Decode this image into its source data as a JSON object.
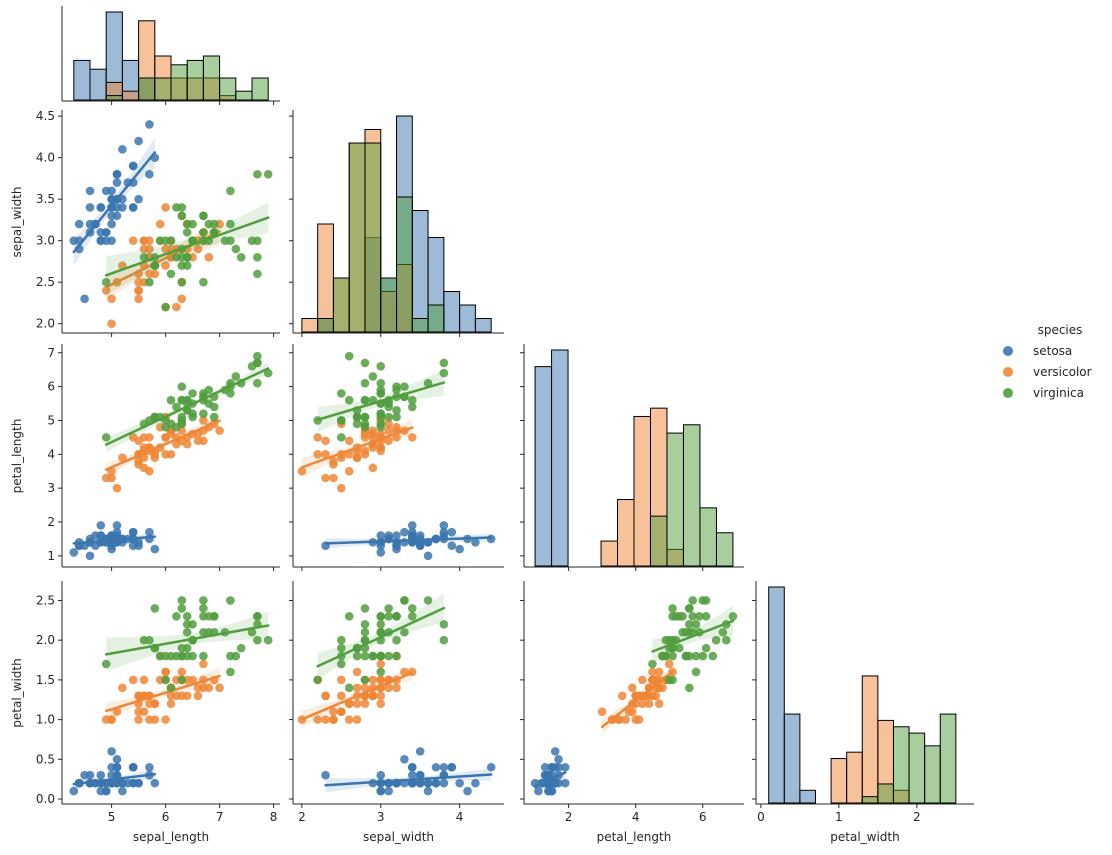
{
  "chart_data": {
    "type": "pairplot",
    "kind": "reg",
    "diag_kind": "hist",
    "corner": true,
    "variables": [
      "sepal_length",
      "sepal_width",
      "petal_length",
      "petal_width"
    ],
    "hue": "species",
    "legend": {
      "title": "species",
      "placement": "right",
      "entries": [
        {
          "name": "setosa",
          "color": "#3b75af"
        },
        {
          "name": "versicolor",
          "color": "#ef8636"
        },
        {
          "name": "virginica",
          "color": "#519e3e"
        }
      ]
    },
    "axes": {
      "sepal_length": {
        "label": "sepal_length",
        "range": [
          4.1,
          8.1
        ],
        "ticks": [
          "5",
          "6",
          "7",
          "8"
        ]
      },
      "sepal_width": {
        "label": "sepal_width",
        "range": [
          1.9,
          4.55
        ],
        "ticks": [
          "2.0",
          "2.5",
          "3.0",
          "3.5",
          "4.0",
          "4.5"
        ],
        "x_ticks": [
          "2",
          "3",
          "4"
        ]
      },
      "petal_length": {
        "label": "petal_length",
        "range": [
          0.7,
          7.2
        ],
        "ticks": [
          "1",
          "2",
          "3",
          "4",
          "5",
          "6",
          "7"
        ],
        "x_ticks": [
          "2",
          "4",
          "6"
        ]
      },
      "petal_width": {
        "label": "petal_width",
        "range": [
          -0.05,
          2.72
        ],
        "ticks": [
          "0.0",
          "0.5",
          "1.0",
          "1.5",
          "2.0",
          "2.5"
        ],
        "x_ticks": [
          "0",
          "1",
          "2"
        ]
      }
    },
    "series": [
      {
        "name": "setosa",
        "color": "#3b75af",
        "sepal_length": [
          5.1,
          4.9,
          4.7,
          4.6,
          5.0,
          5.4,
          4.6,
          5.0,
          4.4,
          4.9,
          5.4,
          4.8,
          4.8,
          4.3,
          5.8,
          5.7,
          5.4,
          5.1,
          5.7,
          5.1,
          5.4,
          5.1,
          4.6,
          5.1,
          4.8,
          5.0,
          5.0,
          5.2,
          5.2,
          4.7,
          4.8,
          5.4,
          5.2,
          5.5,
          4.9,
          5.0,
          5.5,
          4.9,
          4.4,
          5.1,
          5.0,
          4.5,
          4.4,
          5.0,
          5.1,
          4.8,
          5.1,
          4.6,
          5.3,
          5.0
        ],
        "sepal_width": [
          3.5,
          3.0,
          3.2,
          3.1,
          3.6,
          3.9,
          3.4,
          3.4,
          2.9,
          3.1,
          3.7,
          3.4,
          3.0,
          3.0,
          4.0,
          4.4,
          3.9,
          3.5,
          3.8,
          3.8,
          3.4,
          3.7,
          3.6,
          3.3,
          3.4,
          3.0,
          3.4,
          3.5,
          3.4,
          3.2,
          3.1,
          3.4,
          4.1,
          4.2,
          3.1,
          3.2,
          3.5,
          3.6,
          3.0,
          3.4,
          3.5,
          2.3,
          3.2,
          3.5,
          3.8,
          3.0,
          3.8,
          3.2,
          3.7,
          3.3
        ],
        "petal_length": [
          1.4,
          1.4,
          1.3,
          1.5,
          1.4,
          1.7,
          1.4,
          1.5,
          1.4,
          1.5,
          1.5,
          1.6,
          1.4,
          1.1,
          1.2,
          1.5,
          1.3,
          1.4,
          1.7,
          1.5,
          1.7,
          1.5,
          1.0,
          1.7,
          1.9,
          1.6,
          1.6,
          1.5,
          1.4,
          1.6,
          1.6,
          1.5,
          1.5,
          1.4,
          1.5,
          1.2,
          1.3,
          1.4,
          1.3,
          1.5,
          1.3,
          1.3,
          1.3,
          1.6,
          1.9,
          1.4,
          1.6,
          1.4,
          1.5,
          1.4
        ],
        "petal_width": [
          0.2,
          0.2,
          0.2,
          0.2,
          0.2,
          0.4,
          0.3,
          0.2,
          0.2,
          0.1,
          0.2,
          0.2,
          0.1,
          0.1,
          0.2,
          0.4,
          0.4,
          0.3,
          0.3,
          0.3,
          0.2,
          0.4,
          0.2,
          0.5,
          0.2,
          0.2,
          0.4,
          0.2,
          0.2,
          0.2,
          0.2,
          0.4,
          0.1,
          0.2,
          0.2,
          0.2,
          0.2,
          0.1,
          0.2,
          0.2,
          0.3,
          0.3,
          0.2,
          0.6,
          0.4,
          0.3,
          0.2,
          0.2,
          0.2,
          0.2
        ]
      },
      {
        "name": "versicolor",
        "color": "#ef8636",
        "sepal_length": [
          7.0,
          6.4,
          6.9,
          5.5,
          6.5,
          5.7,
          6.3,
          4.9,
          6.6,
          5.2,
          5.0,
          5.9,
          6.0,
          6.1,
          5.6,
          6.7,
          5.6,
          5.8,
          6.2,
          5.6,
          5.9,
          6.1,
          6.3,
          6.1,
          6.4,
          6.6,
          6.8,
          6.7,
          6.0,
          5.7,
          5.5,
          5.5,
          5.8,
          6.0,
          5.4,
          6.0,
          6.7,
          6.3,
          5.6,
          5.5,
          5.5,
          6.1,
          5.8,
          5.0,
          5.6,
          5.7,
          5.7,
          6.2,
          5.1,
          5.7
        ],
        "sepal_width": [
          3.2,
          3.2,
          3.1,
          2.3,
          2.8,
          2.8,
          3.3,
          2.4,
          2.9,
          2.7,
          2.0,
          3.0,
          2.2,
          2.9,
          2.9,
          3.1,
          3.0,
          2.7,
          2.2,
          2.5,
          3.2,
          2.8,
          2.5,
          2.8,
          2.9,
          3.0,
          2.8,
          3.0,
          2.9,
          2.6,
          2.4,
          2.4,
          2.7,
          2.7,
          3.0,
          3.4,
          3.1,
          2.3,
          3.0,
          2.5,
          2.6,
          3.0,
          2.6,
          2.3,
          2.7,
          3.0,
          2.9,
          2.9,
          2.5,
          2.8
        ],
        "petal_length": [
          4.7,
          4.5,
          4.9,
          4.0,
          4.6,
          4.5,
          4.7,
          3.3,
          4.6,
          3.9,
          3.5,
          4.2,
          4.0,
          4.7,
          3.6,
          4.4,
          4.5,
          4.1,
          4.5,
          3.9,
          4.8,
          4.0,
          4.9,
          4.7,
          4.3,
          4.4,
          4.8,
          5.0,
          4.5,
          3.5,
          3.8,
          3.7,
          3.9,
          5.1,
          4.5,
          4.5,
          4.7,
          4.4,
          4.1,
          4.0,
          4.4,
          4.6,
          4.0,
          3.3,
          4.2,
          4.2,
          4.2,
          4.3,
          3.0,
          4.1
        ],
        "petal_width": [
          1.4,
          1.5,
          1.5,
          1.3,
          1.5,
          1.3,
          1.6,
          1.0,
          1.3,
          1.4,
          1.0,
          1.5,
          1.0,
          1.4,
          1.3,
          1.4,
          1.5,
          1.0,
          1.5,
          1.1,
          1.8,
          1.3,
          1.5,
          1.2,
          1.3,
          1.4,
          1.4,
          1.7,
          1.5,
          1.0,
          1.1,
          1.0,
          1.2,
          1.6,
          1.5,
          1.6,
          1.5,
          1.3,
          1.3,
          1.3,
          1.2,
          1.4,
          1.2,
          1.0,
          1.3,
          1.2,
          1.3,
          1.3,
          1.1,
          1.3
        ]
      },
      {
        "name": "virginica",
        "color": "#519e3e",
        "sepal_length": [
          6.3,
          5.8,
          7.1,
          6.3,
          6.5,
          7.6,
          4.9,
          7.3,
          6.7,
          7.2,
          6.5,
          6.4,
          6.8,
          5.7,
          5.8,
          6.4,
          6.5,
          7.7,
          7.7,
          6.0,
          6.9,
          5.6,
          7.7,
          6.3,
          6.7,
          7.2,
          6.2,
          6.1,
          6.4,
          7.2,
          7.4,
          7.9,
          6.4,
          6.3,
          6.1,
          7.7,
          6.3,
          6.4,
          6.0,
          6.9,
          6.7,
          6.9,
          5.8,
          6.8,
          6.7,
          6.7,
          6.3,
          6.5,
          6.2,
          5.9
        ],
        "sepal_width": [
          3.3,
          2.7,
          3.0,
          2.9,
          3.0,
          3.0,
          2.5,
          2.9,
          2.5,
          3.6,
          3.2,
          2.7,
          3.0,
          2.5,
          2.8,
          3.2,
          3.0,
          3.8,
          2.6,
          2.2,
          3.2,
          2.8,
          2.8,
          2.7,
          3.3,
          3.2,
          2.8,
          3.0,
          2.8,
          3.0,
          2.8,
          3.8,
          2.8,
          2.8,
          2.6,
          3.0,
          3.4,
          3.1,
          3.0,
          3.1,
          3.1,
          3.1,
          2.7,
          3.2,
          3.3,
          3.0,
          2.5,
          3.0,
          3.4,
          3.0
        ],
        "petal_length": [
          6.0,
          5.1,
          5.9,
          5.6,
          5.8,
          6.6,
          4.5,
          6.3,
          5.8,
          6.1,
          5.1,
          5.3,
          5.5,
          5.0,
          5.1,
          5.3,
          5.5,
          6.7,
          6.9,
          5.0,
          5.7,
          4.9,
          6.7,
          4.9,
          5.7,
          6.0,
          4.8,
          4.9,
          5.6,
          5.8,
          6.1,
          6.4,
          5.6,
          5.1,
          5.6,
          6.1,
          5.6,
          5.5,
          4.8,
          5.4,
          5.6,
          5.1,
          5.1,
          5.9,
          5.7,
          5.2,
          5.0,
          5.2,
          5.4,
          5.1
        ],
        "petal_width": [
          2.5,
          1.9,
          2.1,
          1.8,
          2.2,
          2.1,
          1.7,
          1.8,
          1.8,
          2.5,
          2.0,
          1.9,
          2.1,
          2.0,
          2.4,
          2.3,
          1.8,
          2.2,
          2.3,
          1.5,
          2.3,
          2.0,
          2.0,
          1.8,
          2.1,
          1.8,
          1.8,
          1.8,
          2.1,
          1.6,
          1.9,
          2.0,
          2.2,
          1.5,
          1.4,
          2.3,
          2.4,
          1.8,
          1.8,
          2.1,
          2.4,
          2.3,
          1.9,
          2.3,
          2.5,
          2.3,
          1.9,
          2.0,
          2.3,
          1.8
        ]
      }
    ]
  }
}
